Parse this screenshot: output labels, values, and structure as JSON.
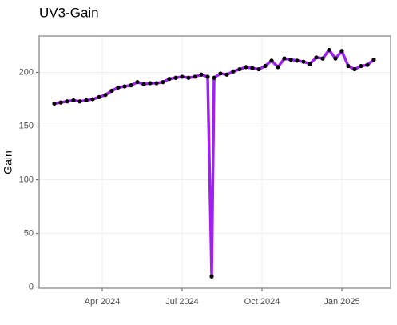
{
  "chart_data": {
    "type": "line",
    "title": "UV3-Gain",
    "y_label": "Gain",
    "x": [
      2024.1,
      2024.12,
      2024.14,
      2024.16,
      2024.18,
      2024.2,
      2024.22,
      2024.24,
      2024.26,
      2024.28,
      2024.3,
      2024.32,
      2024.34,
      2024.36,
      2024.38,
      2024.4,
      2024.42,
      2024.44,
      2024.46,
      2024.48,
      2024.5,
      2024.52,
      2024.54,
      2024.56,
      2024.58,
      2024.5925,
      2024.6,
      2024.62,
      2024.64,
      2024.66,
      2024.68,
      2024.7,
      2024.72,
      2024.74,
      2024.76,
      2024.78,
      2024.8,
      2024.82,
      2024.84,
      2024.86,
      2024.88,
      2024.9,
      2024.92,
      2024.94,
      2024.96,
      2024.98,
      2025.0,
      2025.02,
      2025.04,
      2025.06,
      2025.08,
      2025.1
    ],
    "series": [
      {
        "name": "UV3-Gain",
        "color": "#a020f0",
        "point_color": "#000000",
        "values": [
          171,
          172,
          173,
          174,
          173,
          174,
          175,
          177,
          179,
          183,
          186,
          187,
          188,
          191,
          189,
          190,
          190,
          191,
          194,
          195,
          196,
          195,
          196,
          198,
          196,
          10,
          195,
          199,
          198,
          201,
          203,
          205,
          204,
          203,
          206,
          211,
          205,
          213,
          212,
          211,
          210,
          208,
          214,
          213,
          221,
          213,
          220,
          206,
          203,
          206,
          207,
          212
        ]
      }
    ],
    "xlim": [
      2024.0525,
      2025.1525
    ],
    "xticks": [
      {
        "value": 2024.25,
        "label": "Apr 2024"
      },
      {
        "value": 2024.5,
        "label": "Jul 2024"
      },
      {
        "value": 2024.75,
        "label": "Oct 2024"
      },
      {
        "value": 2025.0,
        "label": "Jan 2025"
      }
    ],
    "ylim": [
      -1,
      234
    ],
    "yticks": [
      0,
      50,
      100,
      150,
      200
    ],
    "grid": true
  }
}
